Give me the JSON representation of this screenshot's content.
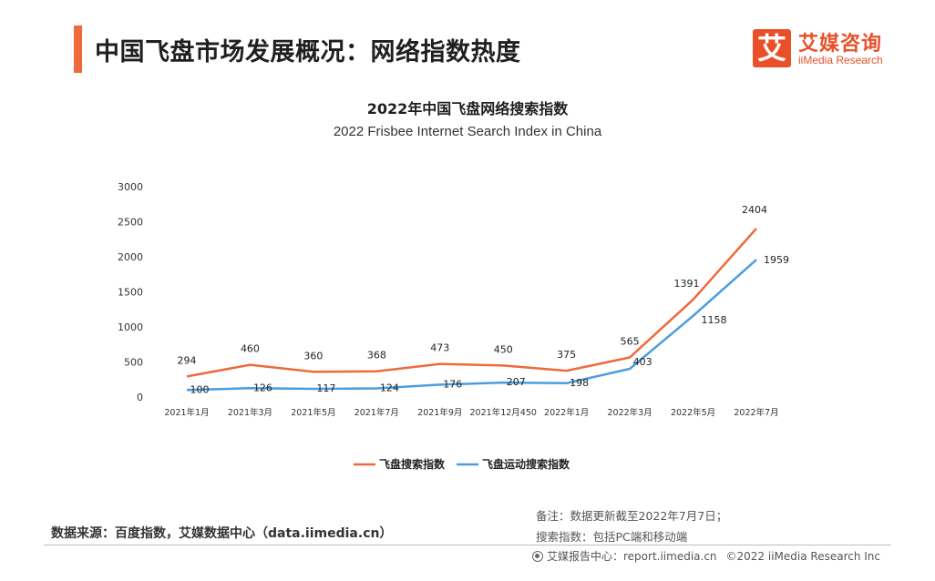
{
  "header": {
    "title": "中国飞盘市场发展概况：网络指数热度",
    "accent_color": "#ee6a3a"
  },
  "logo": {
    "mark": "艾",
    "name_cn": "艾媒咨询",
    "name_en": "iiMedia Research",
    "color": "#e9502a"
  },
  "chart_data": {
    "type": "line",
    "title": "2022年中国飞盘网络搜索指数",
    "subtitle": "2022 Frisbee Internet Search Index in China",
    "categories": [
      "2021年1月",
      "2021年3月",
      "2021年5月",
      "2021年7月",
      "2021年9月",
      "2021年12月450",
      "2022年1月",
      "2022年3月",
      "2022年5月",
      "2022年7月"
    ],
    "series": [
      {
        "name": "飞盘搜索指数",
        "color": "#ee6a3a",
        "values": [
          294,
          460,
          360,
          368,
          473,
          450,
          375,
          565,
          1391,
          2404
        ]
      },
      {
        "name": "飞盘运动搜索指数",
        "color": "#4a9de0",
        "values": [
          100,
          126,
          117,
          124,
          176,
          207,
          198,
          403,
          1158,
          1959
        ]
      }
    ],
    "ylim": [
      0,
      3000
    ],
    "yticks": [
      0,
      500,
      1000,
      1500,
      2000,
      2500,
      3000
    ],
    "grid": false,
    "legend_position": "bottom"
  },
  "notes": {
    "update": "备注：数据更新截至2022年7月7日；",
    "search_index": "搜索指数：包括PC端和移动端"
  },
  "source": "数据来源：百度指数，艾媒数据中心（data.iimedia.cn）",
  "footer": {
    "report": "艾媒报告中心：report.iimedia.cn",
    "copyright": "©2022  iiMedia Research  Inc"
  }
}
